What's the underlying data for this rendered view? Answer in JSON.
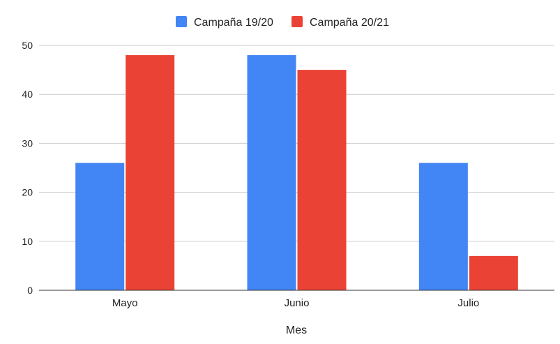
{
  "chart_data": {
    "type": "bar",
    "categories": [
      "Mayo",
      "Junio",
      "Julio"
    ],
    "series": [
      {
        "name": "Campaña 19/20",
        "values": [
          26,
          48,
          26
        ],
        "color": "#4285f4"
      },
      {
        "name": "Campaña 20/21",
        "values": [
          48,
          45,
          7
        ],
        "color": "#ea4335"
      }
    ],
    "xlabel": "Mes",
    "ylabel": "",
    "ylim": [
      0,
      50
    ],
    "yticks": [
      0,
      10,
      20,
      30,
      40,
      50
    ],
    "grid": true,
    "legend_position": "top-center"
  }
}
